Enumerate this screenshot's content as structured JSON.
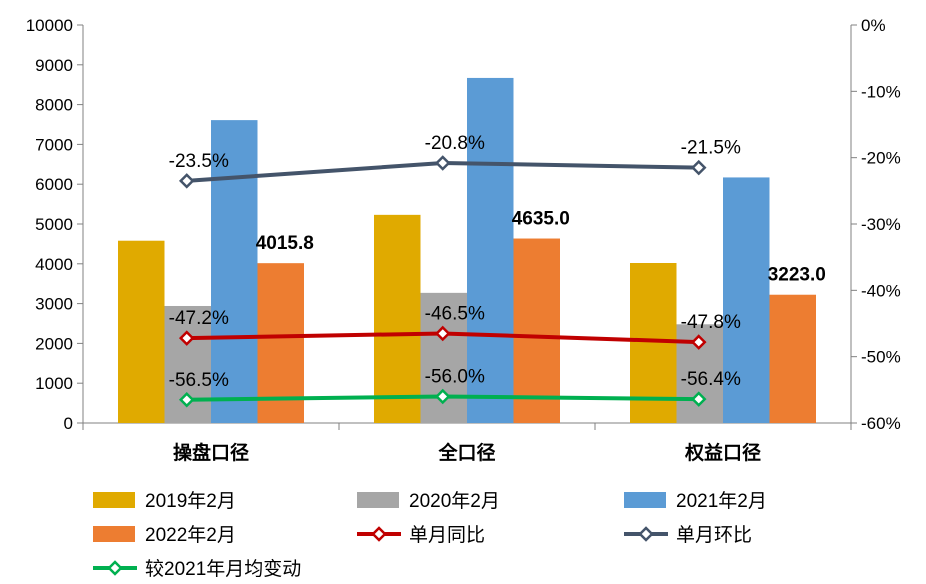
{
  "chart_data": {
    "type": "bar",
    "categories": [
      "操盘口径",
      "全口径",
      "权益口径"
    ],
    "series": [
      {
        "name": "2019年2月",
        "type": "bar",
        "axis": "left",
        "color": "#e0aa00",
        "values": [
          4580,
          5230,
          4020
        ]
      },
      {
        "name": "2020年2月",
        "type": "bar",
        "axis": "left",
        "color": "#a6a6a6",
        "values": [
          2940,
          3270,
          2480
        ]
      },
      {
        "name": "2021年2月",
        "type": "bar",
        "axis": "left",
        "color": "#5b9bd5",
        "values": [
          7610,
          8670,
          6170
        ]
      },
      {
        "name": "2022年2月",
        "type": "bar",
        "axis": "left",
        "color": "#ed7d31",
        "values": [
          4015.8,
          4635.0,
          3223.0
        ],
        "labels": [
          "4015.8",
          "4635.0",
          "3223.0"
        ]
      },
      {
        "name": "单月同比",
        "type": "line",
        "axis": "right",
        "color": "#c00000",
        "values": [
          -47.2,
          -46.5,
          -47.8
        ],
        "labels": [
          "-47.2%",
          "-46.5%",
          "-47.8%"
        ]
      },
      {
        "name": "单月环比",
        "type": "line",
        "axis": "right",
        "color": "#44546a",
        "values": [
          -23.5,
          -20.8,
          -21.5
        ],
        "labels": [
          "-23.5%",
          "-20.8%",
          "-21.5%"
        ]
      },
      {
        "name": "较2021年月均变动",
        "type": "line",
        "axis": "right",
        "color": "#00b050",
        "values": [
          -56.5,
          -56.0,
          -56.4
        ],
        "labels": [
          "-56.5%",
          "-56.0%",
          "-56.4%"
        ]
      }
    ],
    "y_left": {
      "min": 0,
      "max": 10000,
      "ticks": [
        "0",
        "1000",
        "2000",
        "3000",
        "4000",
        "5000",
        "6000",
        "7000",
        "8000",
        "9000",
        "10000"
      ]
    },
    "y_right": {
      "min": -60,
      "max": 0,
      "ticks": [
        "0%",
        "-10%",
        "-20%",
        "-30%",
        "-40%",
        "-50%",
        "-60%"
      ]
    },
    "legend_position": "bottom",
    "grid": false
  }
}
